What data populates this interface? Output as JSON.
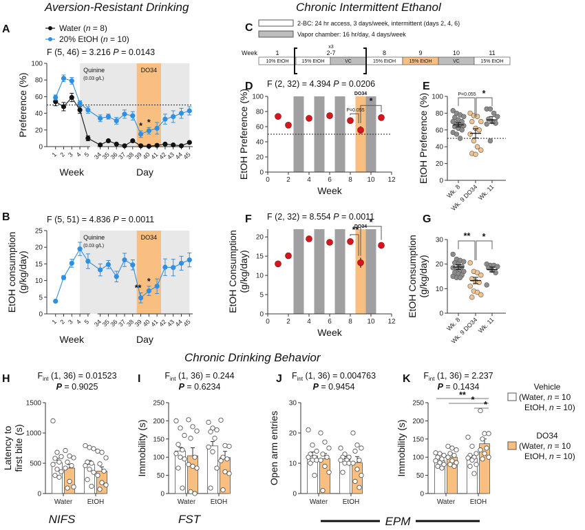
{
  "section_titles": {
    "aversion": "Aversion-Resistant Drinking",
    "cie": "Chronic Intermittent Ethanol",
    "behavior": "Chronic Drinking Behavior"
  },
  "colors": {
    "water": "#111111",
    "etoh": "#2f8fe0",
    "do34": "#f9bf80",
    "vapor": "#a0a0a2",
    "quinine_bg": "#e8e8e8",
    "red_point": "#d8141e",
    "grey_point": "#8c8c8c",
    "orange_point": "#f3c48e"
  },
  "legend_A": [
    {
      "label": "Water  (",
      "n_italic": "n",
      "n_rest": " = 8)"
    },
    {
      "label": "20% EtOH (",
      "n_italic": "n",
      "n_rest": " = 10)"
    }
  ],
  "timeline_C": {
    "legend": [
      {
        "label": "2-BC: 24 hr access, 3 days/week, intermittent (days 2, 4, 6)",
        "style": "white"
      },
      {
        "label": "Vapor chamber: 16 hr/day, 4 days/week",
        "style": "grey"
      }
    ],
    "week_label": "Week",
    "repeat_label": "x3",
    "blocks": [
      {
        "week": "1",
        "label": "10% EtOH",
        "style": "white"
      },
      {
        "week": "2-7",
        "label": "15% EtOH",
        "style": "white"
      },
      {
        "week": "",
        "label": "VC",
        "style": "grey"
      },
      {
        "week": "8",
        "label": "15% EtOH",
        "style": "white"
      },
      {
        "week": "9",
        "label": "15% EtOH",
        "style": "orange"
      },
      {
        "week": "10",
        "label": "VC",
        "style": "grey"
      },
      {
        "week": "11",
        "label": "15% EtOH",
        "style": "white"
      }
    ]
  },
  "chart_data": [
    {
      "id": "A",
      "type": "line",
      "title": "F (5, 46) = 3.216",
      "p_label": "P",
      "p_value": " = 0.0143",
      "ylabel": "Preference (%)",
      "xlabel_left": "Week",
      "xlabel_right": "Day",
      "ylim": [
        0,
        100
      ],
      "yticks": [
        0,
        20,
        40,
        60,
        80,
        100
      ],
      "x": [
        "1",
        "2",
        "3",
        "4",
        "5",
        "34",
        "35",
        "36",
        "37",
        "38",
        "39",
        "40",
        "41",
        "42",
        "43",
        "44",
        "45"
      ],
      "reference_line": 50,
      "shaded_regions": [
        {
          "label": "Quinine",
          "sublabel": "(0.03 g/L)",
          "from": "4",
          "to": "45",
          "color": "quinine_bg"
        },
        {
          "label": "DO34",
          "from": "39",
          "to": "41",
          "color": "do34"
        }
      ],
      "series": [
        {
          "name": "Water (n = 8)",
          "values": [
            54,
            48,
            59,
            44,
            10,
            2,
            7,
            3,
            1,
            7,
            1,
            0.5,
            1.5,
            3,
            2,
            1,
            5
          ],
          "errors": [
            5,
            5,
            5,
            4,
            3,
            1,
            1,
            1,
            1,
            1,
            1,
            1,
            1,
            1,
            1,
            1,
            1
          ]
        },
        {
          "name": "20% EtOH (n = 10)",
          "values": [
            59,
            82,
            79,
            52,
            44,
            34,
            36,
            31,
            39,
            37,
            15,
            19,
            22,
            33,
            36,
            40,
            43
          ],
          "errors": [
            3,
            4,
            4,
            3,
            4,
            4,
            3,
            4,
            5,
            5,
            4,
            4,
            7,
            6,
            7,
            6,
            5
          ]
        }
      ],
      "annotations": [
        {
          "x": "39",
          "text": "*"
        },
        {
          "x": "40",
          "text": "*"
        }
      ]
    },
    {
      "id": "B",
      "type": "line",
      "title": "F (5, 51) = 4.836",
      "p_label": "P",
      "p_value": " = 0.0011",
      "ylabel": "EtOH consumption\n(g/kg/day)",
      "ylabel_lines": [
        "EtOH consumption",
        "(g/kg/day)"
      ],
      "xlabel_left": "Week",
      "xlabel_right": "Day",
      "ylim": [
        0,
        25
      ],
      "yticks": [
        0,
        5,
        10,
        15,
        20,
        25
      ],
      "x": [
        "1",
        "2",
        "3",
        "4",
        "5",
        "34",
        "35",
        "36",
        "37",
        "38",
        "39",
        "40",
        "41",
        "42",
        "43",
        "44",
        "45"
      ],
      "shaded_regions": [
        {
          "label": "Quinine",
          "sublabel": "(0.03 g/L)",
          "from": "4",
          "to": "45",
          "color": "quinine_bg"
        },
        {
          "label": "DO34",
          "from": "39",
          "to": "41",
          "color": "do34"
        }
      ],
      "series": [
        {
          "name": "20% EtOH (n = 10)",
          "values": [
            3.8,
            10.9,
            15.2,
            19.5,
            15.8,
            13.2,
            14.8,
            11.2,
            16.2,
            14.7,
            4.8,
            6.9,
            8.3,
            14.0,
            13.9,
            15.2,
            16.2
          ],
          "errors": [
            0.3,
            0.6,
            1.2,
            2.0,
            2.2,
            1.8,
            1.2,
            1.6,
            2.0,
            1.5,
            1.5,
            1.4,
            2.2,
            2.5,
            2.5,
            2.1,
            2.1
          ]
        }
      ],
      "annotations": [
        {
          "x": "39",
          "text": "**"
        },
        {
          "x": "40",
          "text": "*"
        }
      ]
    },
    {
      "id": "D",
      "type": "scatter",
      "title": "F (2, 32) = 4.394",
      "p_label": "P",
      "p_value": " = 0.0206",
      "ylabel": "EtOH Preference (%)",
      "xlabel": "Week",
      "xlim": [
        0,
        12
      ],
      "ylim": [
        0,
        100
      ],
      "xticks": [
        0,
        2,
        4,
        6,
        8,
        10,
        12
      ],
      "yticks": [
        0,
        20,
        40,
        60,
        80,
        100
      ],
      "reference_line": 50,
      "vapor_weeks": [
        3,
        5,
        7,
        10
      ],
      "do34_week": 9,
      "do34_label": "DO34",
      "points": [
        {
          "x": 1,
          "y": 73.5,
          "e": 3
        },
        {
          "x": 2,
          "y": 62,
          "e": 3
        },
        {
          "x": 4,
          "y": 71,
          "e": 2
        },
        {
          "x": 6,
          "y": 74.5,
          "e": 2
        },
        {
          "x": 8,
          "y": 68,
          "e": 2
        },
        {
          "x": 9,
          "y": 55.5,
          "e": 5
        },
        {
          "x": 11,
          "y": 72,
          "e": 4
        }
      ],
      "brackets": [
        {
          "from": 8,
          "to": 9,
          "label": "P=0.055"
        },
        {
          "from": 9,
          "to": 11,
          "label": "*"
        }
      ]
    },
    {
      "id": "E",
      "type": "scatter",
      "ylabel": "EtOH Preference (%)",
      "ylim": [
        0,
        100
      ],
      "yticks": [
        0,
        20,
        40,
        60,
        80,
        100
      ],
      "reference_line": 50,
      "categories": [
        "Wk. 8",
        "Wk. 9 DO34",
        "Wk. 11"
      ],
      "groups": [
        {
          "name": "Wk. 8",
          "mean": 66,
          "sem": 2.5,
          "color": "grey_point",
          "values": [
            83,
            80,
            78,
            76,
            75,
            72,
            70,
            70,
            68,
            66,
            65,
            64,
            62,
            60,
            57,
            55,
            50
          ]
        },
        {
          "name": "Wk. 9 DO34",
          "mean": 56,
          "sem": 5.5,
          "color": "orange_point",
          "values": [
            80,
            77,
            76,
            70,
            70,
            62,
            60,
            55,
            47,
            40,
            36,
            32,
            31
          ]
        },
        {
          "name": "Wk. 11",
          "mean": 72,
          "sem": 4,
          "color": "grey_point",
          "values": [
            85,
            85,
            80,
            76,
            73,
            70,
            68,
            67,
            47
          ]
        }
      ],
      "brackets": [
        {
          "from": 0,
          "to": 1,
          "label": "P=0.055"
        },
        {
          "from": 1,
          "to": 2,
          "label": "*"
        }
      ]
    },
    {
      "id": "F",
      "type": "scatter",
      "title": "F (2, 32) = 8.554",
      "p_label": "P",
      "p_value": " = 0.0011",
      "ylabel_lines": [
        "EtOH Consumption",
        "(g/kg/day)"
      ],
      "xlabel": "Week",
      "xlim": [
        0,
        12
      ],
      "ylim": [
        0,
        22
      ],
      "xticks": [
        0,
        2,
        4,
        6,
        8,
        10,
        12
      ],
      "yticks": [
        0,
        5,
        10,
        15,
        20
      ],
      "vapor_weeks": [
        3,
        5,
        7,
        10
      ],
      "do34_week": 9,
      "do34_label": "DO34",
      "points": [
        {
          "x": 1,
          "y": 13.0,
          "e": 0.6
        },
        {
          "x": 2,
          "y": 15.1,
          "e": 0.7
        },
        {
          "x": 4,
          "y": 19.5,
          "e": 0.5
        },
        {
          "x": 6,
          "y": 18.6,
          "e": 0.5
        },
        {
          "x": 8,
          "y": 18.8,
          "e": 0.8
        },
        {
          "x": 9,
          "y": 13.3,
          "e": 1.3
        },
        {
          "x": 11,
          "y": 17.8,
          "e": 0.8
        }
      ],
      "brackets": [
        {
          "from": 8,
          "to": 9,
          "label": "**"
        },
        {
          "from": 9,
          "to": 11,
          "label": "*"
        }
      ]
    },
    {
      "id": "G",
      "type": "scatter",
      "ylabel_lines": [
        "EtOH Consumption",
        "(g/kg/day)"
      ],
      "ylim": [
        0,
        30
      ],
      "yticks": [
        0,
        10,
        20,
        30
      ],
      "categories": [
        "Wk. 8",
        "Wk. 9 DO34",
        "Wk. 11"
      ],
      "groups": [
        {
          "name": "Wk. 8",
          "mean": 18.8,
          "sem": 1.0,
          "color": "grey_point",
          "values": [
            24,
            22,
            21.5,
            21,
            20.5,
            20,
            19,
            18.5,
            18,
            17.5,
            17,
            16.5,
            16,
            15.5,
            15,
            14.5,
            14.5
          ]
        },
        {
          "name": "Wk. 9 DO34",
          "mean": 13.3,
          "sem": 1.3,
          "color": "orange_point",
          "values": [
            20.5,
            17,
            16.5,
            15.5,
            14,
            13,
            12.5,
            11,
            9,
            8.5,
            7.5,
            6.5
          ]
        },
        {
          "name": "Wk. 11",
          "mean": 17.8,
          "sem": 1.0,
          "color": "grey_point",
          "values": [
            20,
            19.5,
            19.5,
            19,
            18.5,
            17.5,
            16.5,
            11.5
          ]
        }
      ],
      "brackets": [
        {
          "from": 0,
          "to": 1,
          "label": "**"
        },
        {
          "from": 1,
          "to": 2,
          "label": "*"
        }
      ]
    },
    {
      "id": "H",
      "type": "bar",
      "stat_line1": {
        "F": "F",
        "sub": "int",
        "rest": " (1, 36) = 0.01523"
      },
      "stat_line2": {
        "p": "P",
        "rest": " = 0.9025"
      },
      "ylabel_lines": [
        "Latency to",
        "first bite (s)"
      ],
      "ylim": [
        0,
        1500
      ],
      "yticks": [
        0,
        500,
        1000,
        1500
      ],
      "categories": [
        "Water",
        "EtOH"
      ],
      "caption": "NIFS",
      "series": [
        {
          "name": "Vehicle",
          "values": [
            510,
            480
          ],
          "sem": [
            70,
            65
          ],
          "points": [
            [
              1200,
              680,
              610,
              580,
              520,
              480,
              400,
              360,
              300,
              270
            ],
            [
              790,
              760,
              740,
              520,
              500,
              460,
              400,
              350,
              230,
              120
            ]
          ]
        },
        {
          "name": "DO34",
          "values": [
            420,
            370
          ],
          "sem": [
            60,
            70
          ],
          "points": [
            [
              710,
              620,
              590,
              520,
              460,
              420,
              200,
              110,
              90
            ],
            [
              700,
              680,
              590,
              490,
              370,
              300,
              180,
              140,
              70
            ]
          ]
        }
      ]
    },
    {
      "id": "I",
      "type": "bar",
      "stat_line1": {
        "F": "F",
        "sub": "int",
        "rest": " (1, 36) = 0.244"
      },
      "stat_line2": {
        "p": "P",
        "rest": " = 0.6234"
      },
      "ylabel_lines": [
        "Immobility (s)"
      ],
      "ylim": [
        0,
        250
      ],
      "yticks": [
        0,
        50,
        100,
        150,
        200,
        250
      ],
      "categories": [
        "Water",
        "EtOH"
      ],
      "caption": "FST",
      "series": [
        {
          "name": "Vehicle",
          "values": [
            117,
            131
          ],
          "sem": [
            10,
            12
          ],
          "points": [
            [
              200,
              180,
              160,
              135,
              120,
              110,
              100,
              95,
              70,
              15
            ],
            [
              196,
              180,
              175,
              170,
              152,
              128,
              115,
              70,
              15
            ]
          ]
        },
        {
          "name": "DO34",
          "values": [
            104,
            99
          ],
          "sem": [
            22,
            17
          ],
          "points": [
            [
              203,
              184,
              172,
              152,
              100,
              80,
              75,
              70,
              5,
              0
            ],
            [
              202,
              132,
              130,
              100,
              95,
              90,
              60,
              55,
              10
            ]
          ]
        }
      ]
    },
    {
      "id": "J",
      "type": "bar",
      "stat_line1": {
        "F": "F",
        "sub": "int",
        "rest": " (1, 36) = 0.004763"
      },
      "stat_line2": {
        "p": "P",
        "rest": " = 0.9454"
      },
      "ylabel_lines": [
        "Open arm entries"
      ],
      "ylim": [
        0,
        30
      ],
      "yticks": [
        0,
        10,
        20,
        30
      ],
      "categories": [
        "Water",
        "EtOH"
      ],
      "caption": "EPM",
      "series": [
        {
          "name": "Vehicle",
          "values": [
            12.4,
            11.4
          ],
          "sem": [
            1.3,
            0.8
          ],
          "points": [
            [
              21,
              16,
              14,
              13,
              12,
              12,
              11,
              11,
              10,
              6
            ],
            [
              15,
              13,
              12,
              12,
              11,
              11,
              10,
              10,
              7
            ]
          ]
        },
        {
          "name": "DO34",
          "values": [
            11.5,
            10.2
          ],
          "sem": [
            1.7,
            2.0
          ],
          "points": [
            [
              20,
              17,
              15,
              13,
              12,
              11,
              9,
              7,
              1
            ],
            [
              20,
              16,
              15,
              14,
              11,
              10,
              8,
              6,
              4,
              2
            ]
          ]
        }
      ]
    },
    {
      "id": "K",
      "type": "bar",
      "stat_line1": {
        "F": "F",
        "sub": "int",
        "rest": " (1, 36) = 2.237"
      },
      "stat_line2": {
        "p": "P",
        "rest": " = 0.1434"
      },
      "ylabel_lines": [
        "Immobility (s)"
      ],
      "ylim": [
        0,
        250
      ],
      "yticks": [
        0,
        50,
        100,
        150,
        200,
        250
      ],
      "categories": [
        "Water",
        "EtOH"
      ],
      "caption": "EPM",
      "series": [
        {
          "name": "Vehicle",
          "values": [
            90,
            97
          ],
          "sem": [
            5,
            8
          ],
          "points": [
            [
              112,
              110,
              105,
              100,
              95,
              90,
              85,
              80,
              75,
              70
            ],
            [
              155,
              130,
              110,
              105,
              100,
              98,
              92,
              80,
              75,
              55
            ]
          ]
        },
        {
          "name": "DO34",
          "values": [
            100,
            137
          ],
          "sem": [
            7,
            13
          ],
          "points": [
            [
              130,
              125,
              120,
              110,
              105,
              100,
              90,
              85,
              80,
              75
            ],
            [
              228,
              165,
              165,
              150,
              125,
              120,
              110,
              100,
              95
            ]
          ]
        }
      ],
      "significance": [
        {
          "label": "**"
        },
        {
          "label": "*"
        },
        {
          "label": "*"
        }
      ]
    }
  ],
  "legend_HK": {
    "vehicle_title": "Vehicle",
    "vehicle_line1": "(Water, ",
    "vehicle_line2": "EtOH, ",
    "do34_title": "DO34",
    "do34_line1": "(Water, ",
    "do34_line2": "EtOH, ",
    "n_italic": "n",
    "n_rest1": " = 10",
    "n_rest2": " = 10)"
  },
  "epm_label": "EPM",
  "nifs_label": "NIFS",
  "fst_label": "FST"
}
